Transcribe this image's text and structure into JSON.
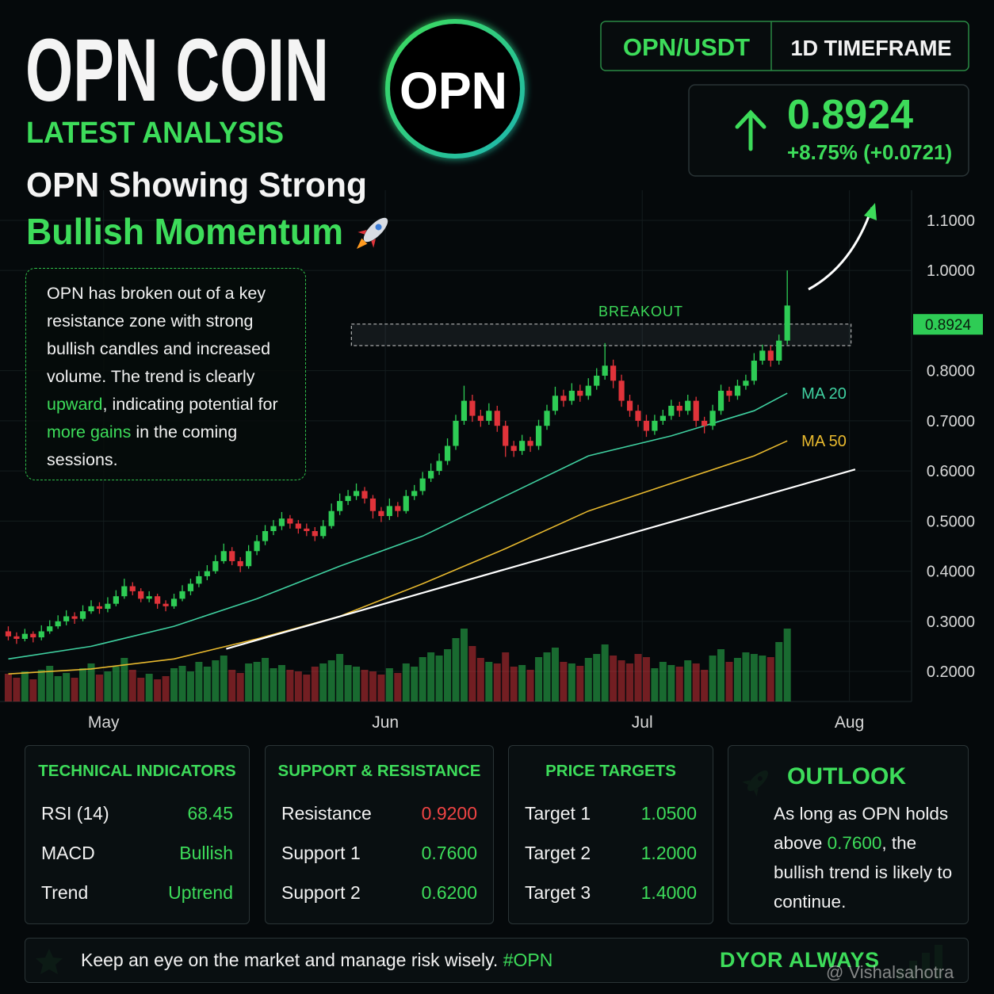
{
  "header": {
    "title": "OPN COIN",
    "subtitle": "LATEST ANALYSIS",
    "headline_1": "OPN Showing Strong",
    "headline_2": "Bullish Momentum",
    "logo": "OPN",
    "pair": "OPN/USDT",
    "timeframe": "1D TIMEFRAME"
  },
  "price": {
    "value": 0.8924,
    "change": "+8.75% (+0.0721)"
  },
  "description": [
    {
      "text": "OPN has broken out of a key resistance zone with strong bullish candles and increased volume. The trend is clearly "
    },
    {
      "text": "upward",
      "color": "#3ddc5a"
    },
    {
      "text": ", indicating potential for "
    },
    {
      "text": "more gains",
      "color": "#3ddc5a"
    },
    {
      "text": " in the coming sessions."
    }
  ],
  "chart_data": {
    "type": "candlestick",
    "up_color": "#2ecc55",
    "down_color": "#e0333a",
    "grid": true,
    "candles": [
      [
        0.28,
        0.29,
        0.262,
        0.27
      ],
      [
        0.27,
        0.278,
        0.255,
        0.265
      ],
      [
        0.265,
        0.285,
        0.26,
        0.275
      ],
      [
        0.275,
        0.28,
        0.258,
        0.268
      ],
      [
        0.268,
        0.292,
        0.262,
        0.28
      ],
      [
        0.28,
        0.302,
        0.275,
        0.29
      ],
      [
        0.29,
        0.312,
        0.285,
        0.3
      ],
      [
        0.3,
        0.322,
        0.292,
        0.31
      ],
      [
        0.31,
        0.318,
        0.295,
        0.305
      ],
      [
        0.305,
        0.332,
        0.3,
        0.32
      ],
      [
        0.32,
        0.342,
        0.315,
        0.33
      ],
      [
        0.33,
        0.338,
        0.315,
        0.325
      ],
      [
        0.325,
        0.348,
        0.318,
        0.335
      ],
      [
        0.335,
        0.362,
        0.33,
        0.35
      ],
      [
        0.35,
        0.385,
        0.345,
        0.37
      ],
      [
        0.37,
        0.378,
        0.352,
        0.36
      ],
      [
        0.36,
        0.366,
        0.338,
        0.345
      ],
      [
        0.345,
        0.36,
        0.338,
        0.35
      ],
      [
        0.35,
        0.355,
        0.325,
        0.335
      ],
      [
        0.335,
        0.342,
        0.32,
        0.33
      ],
      [
        0.33,
        0.355,
        0.325,
        0.345
      ],
      [
        0.345,
        0.372,
        0.34,
        0.36
      ],
      [
        0.36,
        0.385,
        0.352,
        0.375
      ],
      [
        0.375,
        0.4,
        0.368,
        0.39
      ],
      [
        0.39,
        0.412,
        0.382,
        0.4
      ],
      [
        0.4,
        0.432,
        0.395,
        0.42
      ],
      [
        0.42,
        0.455,
        0.415,
        0.44
      ],
      [
        0.44,
        0.448,
        0.412,
        0.42
      ],
      [
        0.42,
        0.428,
        0.398,
        0.41
      ],
      [
        0.41,
        0.452,
        0.405,
        0.44
      ],
      [
        0.44,
        0.472,
        0.432,
        0.46
      ],
      [
        0.46,
        0.492,
        0.452,
        0.48
      ],
      [
        0.48,
        0.502,
        0.472,
        0.49
      ],
      [
        0.49,
        0.518,
        0.482,
        0.505
      ],
      [
        0.505,
        0.512,
        0.485,
        0.495
      ],
      [
        0.495,
        0.502,
        0.475,
        0.485
      ],
      [
        0.485,
        0.495,
        0.47,
        0.48
      ],
      [
        0.48,
        0.488,
        0.46,
        0.47
      ],
      [
        0.47,
        0.502,
        0.465,
        0.49
      ],
      [
        0.49,
        0.535,
        0.485,
        0.52
      ],
      [
        0.52,
        0.555,
        0.512,
        0.54
      ],
      [
        0.54,
        0.562,
        0.532,
        0.55
      ],
      [
        0.55,
        0.575,
        0.542,
        0.56
      ],
      [
        0.56,
        0.568,
        0.535,
        0.545
      ],
      [
        0.545,
        0.552,
        0.505,
        0.52
      ],
      [
        0.52,
        0.528,
        0.498,
        0.51
      ],
      [
        0.51,
        0.545,
        0.502,
        0.53
      ],
      [
        0.53,
        0.538,
        0.508,
        0.52
      ],
      [
        0.52,
        0.562,
        0.515,
        0.55
      ],
      [
        0.55,
        0.572,
        0.542,
        0.56
      ],
      [
        0.56,
        0.598,
        0.552,
        0.585
      ],
      [
        0.585,
        0.615,
        0.578,
        0.6
      ],
      [
        0.6,
        0.635,
        0.592,
        0.62
      ],
      [
        0.62,
        0.665,
        0.612,
        0.65
      ],
      [
        0.65,
        0.712,
        0.642,
        0.7
      ],
      [
        0.7,
        0.77,
        0.692,
        0.74
      ],
      [
        0.74,
        0.752,
        0.698,
        0.71
      ],
      [
        0.71,
        0.722,
        0.688,
        0.7
      ],
      [
        0.7,
        0.735,
        0.692,
        0.72
      ],
      [
        0.72,
        0.73,
        0.678,
        0.69
      ],
      [
        0.69,
        0.7,
        0.628,
        0.65
      ],
      [
        0.65,
        0.66,
        0.628,
        0.64
      ],
      [
        0.64,
        0.672,
        0.632,
        0.66
      ],
      [
        0.66,
        0.668,
        0.638,
        0.65
      ],
      [
        0.65,
        0.702,
        0.642,
        0.69
      ],
      [
        0.69,
        0.732,
        0.682,
        0.72
      ],
      [
        0.72,
        0.768,
        0.712,
        0.75
      ],
      [
        0.75,
        0.762,
        0.728,
        0.74
      ],
      [
        0.74,
        0.775,
        0.732,
        0.76
      ],
      [
        0.76,
        0.772,
        0.738,
        0.75
      ],
      [
        0.75,
        0.785,
        0.742,
        0.77
      ],
      [
        0.77,
        0.805,
        0.762,
        0.79
      ],
      [
        0.79,
        0.855,
        0.782,
        0.81
      ],
      [
        0.81,
        0.822,
        0.765,
        0.78
      ],
      [
        0.78,
        0.792,
        0.728,
        0.74
      ],
      [
        0.74,
        0.752,
        0.708,
        0.72
      ],
      [
        0.72,
        0.732,
        0.688,
        0.7
      ],
      [
        0.7,
        0.712,
        0.668,
        0.68
      ],
      [
        0.68,
        0.712,
        0.672,
        0.7
      ],
      [
        0.7,
        0.722,
        0.692,
        0.71
      ],
      [
        0.71,
        0.742,
        0.702,
        0.73
      ],
      [
        0.73,
        0.738,
        0.708,
        0.72
      ],
      [
        0.72,
        0.752,
        0.712,
        0.74
      ],
      [
        0.74,
        0.748,
        0.688,
        0.7
      ],
      [
        0.7,
        0.708,
        0.675,
        0.69
      ],
      [
        0.69,
        0.732,
        0.682,
        0.72
      ],
      [
        0.72,
        0.772,
        0.712,
        0.76
      ],
      [
        0.76,
        0.768,
        0.738,
        0.75
      ],
      [
        0.75,
        0.782,
        0.742,
        0.77
      ],
      [
        0.77,
        0.792,
        0.762,
        0.78
      ],
      [
        0.78,
        0.835,
        0.772,
        0.82
      ],
      [
        0.82,
        0.852,
        0.812,
        0.84
      ],
      [
        0.84,
        0.85,
        0.808,
        0.82
      ],
      [
        0.82,
        0.872,
        0.812,
        0.86
      ],
      [
        0.86,
        1.0,
        0.852,
        0.93
      ]
    ],
    "volumes": [
      35,
      30,
      38,
      28,
      40,
      45,
      32,
      36,
      30,
      42,
      48,
      34,
      38,
      44,
      55,
      40,
      30,
      35,
      28,
      32,
      42,
      45,
      38,
      50,
      44,
      52,
      58,
      40,
      36,
      48,
      50,
      55,
      42,
      46,
      40,
      38,
      34,
      44,
      48,
      52,
      60,
      46,
      44,
      40,
      38,
      34,
      42,
      36,
      48,
      44,
      56,
      62,
      58,
      66,
      80,
      92,
      70,
      55,
      50,
      48,
      62,
      44,
      46,
      40,
      56,
      62,
      68,
      50,
      48,
      45,
      55,
      60,
      72,
      58,
      52,
      48,
      60,
      56,
      42,
      50,
      46,
      44,
      52,
      48,
      40,
      58,
      66,
      50,
      55,
      62,
      60,
      58,
      56,
      75,
      92
    ],
    "volume_lim": [
      0,
      100
    ],
    "series": [
      {
        "name": "MA 20",
        "color": "#3fd0a0",
        "x": [
          0,
          10,
          20,
          30,
          40,
          50,
          60,
          70,
          80,
          90,
          94
        ],
        "values": [
          0.225,
          0.25,
          0.29,
          0.345,
          0.41,
          0.47,
          0.55,
          0.63,
          0.67,
          0.72,
          0.755
        ]
      },
      {
        "name": "MA 50",
        "color": "#e8b92e",
        "x": [
          0,
          10,
          20,
          30,
          40,
          50,
          60,
          70,
          80,
          90,
          94
        ],
        "values": [
          0.195,
          0.205,
          0.225,
          0.265,
          0.31,
          0.375,
          0.445,
          0.52,
          0.575,
          0.63,
          0.66
        ]
      },
      {
        "color": "#ffffff",
        "x": [
          26.3,
          102.2
        ],
        "values": [
          0.245,
          0.603
        ]
      }
    ],
    "zones": [
      {
        "label": "BREAKOUT",
        "x": [
          41.4,
          101.7
        ],
        "range": [
          0.85,
          0.893
        ]
      }
    ],
    "xlim": [
      -1,
      109
    ],
    "xticks": [
      {
        "value": 11.5,
        "label": "May"
      },
      {
        "value": 45.5,
        "label": "Jun"
      },
      {
        "value": 76.5,
        "label": "Jul"
      },
      {
        "value": 101.5,
        "label": "Aug"
      }
    ],
    "ylim": [
      0.14,
      1.16
    ],
    "yticks": [
      {
        "value": 0.2,
        "label": "0.2000"
      },
      {
        "value": 0.3,
        "label": "0.3000"
      },
      {
        "value": 0.4,
        "label": "0.4000"
      },
      {
        "value": 0.5,
        "label": "0.5000"
      },
      {
        "value": 0.6,
        "label": "0.6000"
      },
      {
        "value": 0.7,
        "label": "0.7000"
      },
      {
        "value": 0.8,
        "label": "0.8000"
      },
      {
        "value": 1,
        "label": "1.0000"
      },
      {
        "value": 1.1,
        "label": "1.1000"
      }
    ]
  },
  "panels": [
    {
      "title": "TECHNICAL INDICATORS",
      "rows": [
        {
          "label": "RSI (14)",
          "value": "68.45",
          "color": "#3ddc5a"
        },
        {
          "label": "MACD",
          "value": "Bullish",
          "color": "#3ddc5a"
        },
        {
          "label": "Trend",
          "value": "Uptrend",
          "color": "#3ddc5a"
        }
      ]
    },
    {
      "title": "SUPPORT & RESISTANCE",
      "rows": [
        {
          "label": "Resistance",
          "value": "0.9200",
          "color": "#ef4444"
        },
        {
          "label": "Support 1",
          "value": "0.7600",
          "color": "#3ddc5a"
        },
        {
          "label": "Support 2",
          "value": "0.6200",
          "color": "#3ddc5a"
        }
      ]
    },
    {
      "title": "PRICE TARGETS",
      "rows": [
        {
          "label": "Target 1",
          "value": "1.0500",
          "color": "#3ddc5a"
        },
        {
          "label": "Target 2",
          "value": "1.2000",
          "color": "#3ddc5a"
        },
        {
          "label": "Target 3",
          "value": "1.4000",
          "color": "#3ddc5a"
        }
      ]
    }
  ],
  "outlook": {
    "title": "OUTLOOK",
    "text": [
      {
        "text": "As long as OPN holds above "
      },
      {
        "text": "0.7600",
        "color": "#3ddc5a"
      },
      {
        "text": ", the bullish trend is likely to continue."
      }
    ]
  },
  "footer": {
    "text": [
      {
        "text": "Keep an eye on the market and manage risk wisely. "
      },
      {
        "text": "#OPN",
        "color": "#3ddc5a"
      }
    ],
    "tagline": "DYOR ALWAYS",
    "watermark": "@ Vishalsahotra"
  }
}
